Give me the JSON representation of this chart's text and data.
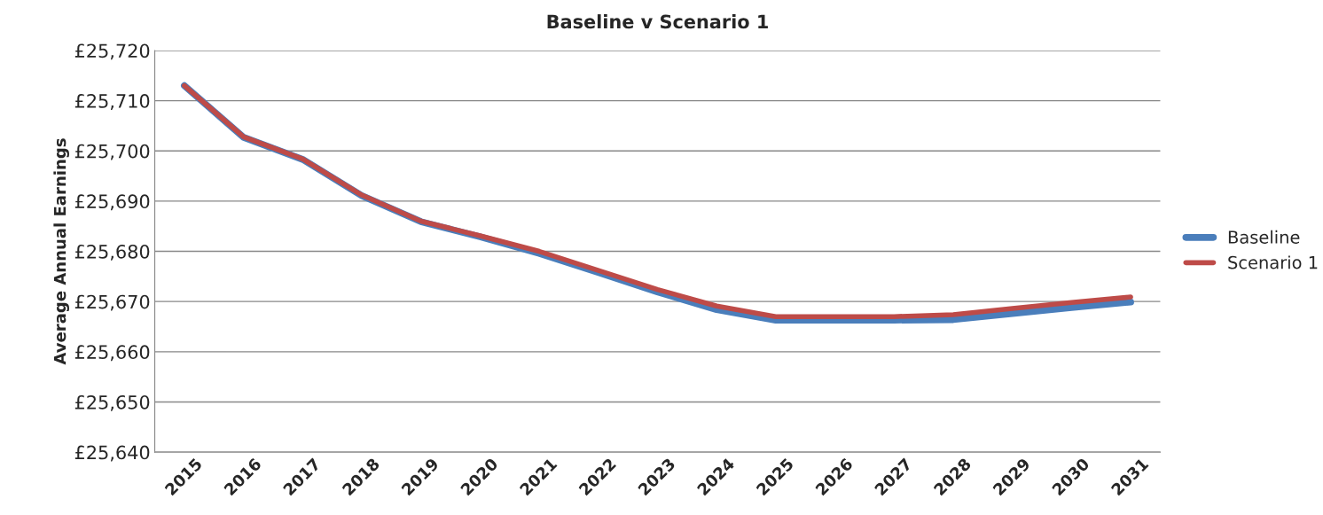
{
  "chart_data": {
    "type": "line",
    "title": "Baseline v Scenario 1",
    "ylabel": "Average Annual Earnings",
    "categories": [
      "2015",
      "2016",
      "2017",
      "2018",
      "2019",
      "2020",
      "2021",
      "2022",
      "2023",
      "2024",
      "2025",
      "2026",
      "2027",
      "2028",
      "2029",
      "2030",
      "2031"
    ],
    "series": [
      {
        "name": "Baseline",
        "color": "#4a7ebb",
        "values": [
          25713.0,
          25702.7,
          25698.3,
          25691.1,
          25685.9,
          25682.9,
          25679.6,
          25675.8,
          25671.9,
          25668.4,
          25666.3,
          25666.3,
          25666.3,
          25666.4,
          25667.6,
          25668.8,
          25669.9
        ]
      },
      {
        "name": "Scenario 1",
        "color": "#be4b48",
        "values": [
          25713.0,
          25702.8,
          25698.4,
          25691.2,
          25686.0,
          25683.1,
          25680.0,
          25676.2,
          25672.4,
          25669.1,
          25667.0,
          25667.0,
          25667.0,
          25667.4,
          25668.6,
          25669.8,
          25670.9
        ]
      }
    ],
    "ylim": [
      25640,
      25720
    ],
    "yticks": [
      {
        "value": 25640,
        "label": "£25,640"
      },
      {
        "value": 25650,
        "label": "£25,650"
      },
      {
        "value": 25660,
        "label": "£25,660"
      },
      {
        "value": 25670,
        "label": "£25,670"
      },
      {
        "value": 25680,
        "label": "£25,680"
      },
      {
        "value": 25690,
        "label": "£25,690"
      },
      {
        "value": 25700,
        "label": "£25,700"
      },
      {
        "value": 25710,
        "label": "£25,710"
      },
      {
        "value": 25720,
        "label": "£25,720"
      }
    ],
    "grid": "y",
    "legend": "right",
    "marker": "none",
    "line_style": "solid"
  }
}
